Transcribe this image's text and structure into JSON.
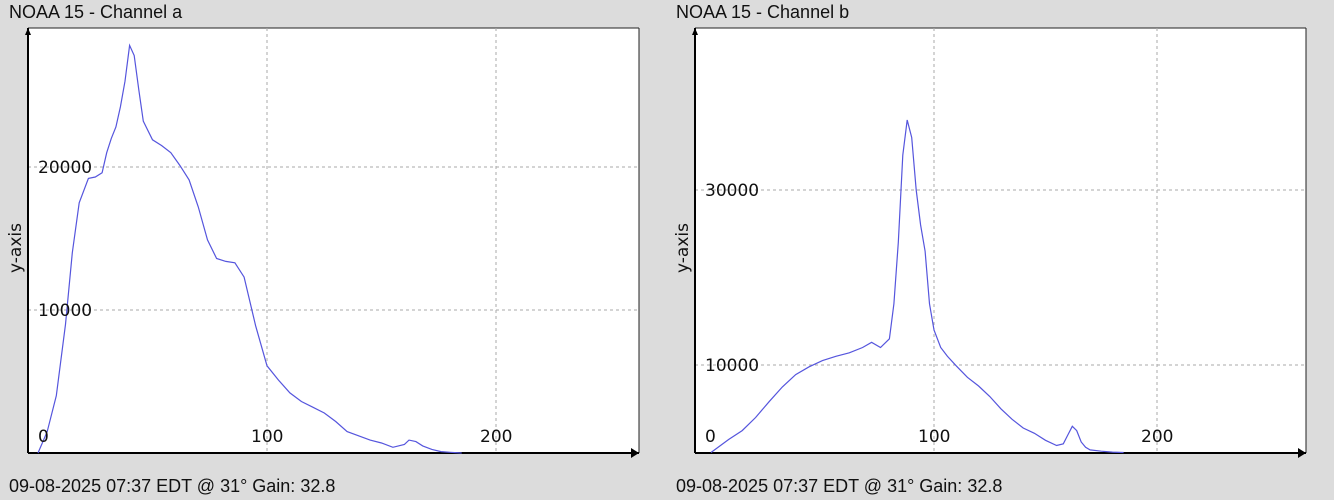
{
  "chart_data": [
    {
      "type": "line",
      "title": "NOAA 15 - Channel a",
      "footer": "09-08-2025 07:37 EDT @ 31° Gain: 32.8",
      "ylabel": "y-axis",
      "xlim": [
        0,
        260
      ],
      "ylim": [
        0,
        30000
      ],
      "grid": true,
      "x_ticks": [
        {
          "value": 0,
          "label": "0"
        },
        {
          "value": 100,
          "label": "100"
        },
        {
          "value": 200,
          "label": "200"
        }
      ],
      "y_ticks": [
        {
          "value": 10000,
          "label": "10000"
        },
        {
          "value": 20000,
          "label": "20000"
        }
      ],
      "color": "#5555dd",
      "series": [
        {
          "x": [
            0,
            4,
            8,
            12,
            15,
            18,
            22,
            25,
            28,
            30,
            32,
            34,
            36,
            38,
            40,
            42,
            44,
            46,
            50,
            54,
            58,
            62,
            66,
            70,
            74,
            78,
            82,
            86,
            90,
            95,
            100,
            105,
            110,
            115,
            120,
            125,
            130,
            135,
            140,
            145,
            150,
            155,
            160,
            162,
            165,
            168,
            172,
            176,
            180,
            185
          ],
          "y": [
            0,
            1500,
            4000,
            9000,
            14000,
            17500,
            19200,
            19300,
            19600,
            21000,
            22000,
            22800,
            24200,
            26000,
            28500,
            27800,
            25400,
            23200,
            21900,
            21500,
            21000,
            20100,
            19100,
            17200,
            14900,
            13600,
            13400,
            13300,
            12300,
            8900,
            6100,
            5100,
            4200,
            3600,
            3200,
            2800,
            2200,
            1500,
            1200,
            900,
            700,
            400,
            600,
            900,
            800,
            500,
            250,
            100,
            50,
            0
          ]
        }
      ]
    },
    {
      "type": "line",
      "title": "NOAA 15 - Channel b",
      "footer": "09-08-2025 07:37 EDT @ 31° Gain: 32.8",
      "ylabel": "y-axis",
      "xlim": [
        0,
        255
      ],
      "ylim": [
        0,
        40000
      ],
      "grid": true,
      "x_ticks": [
        {
          "value": 0,
          "label": "0"
        },
        {
          "value": 100,
          "label": "100"
        },
        {
          "value": 200,
          "label": "200"
        }
      ],
      "y_ticks": [
        {
          "value": 10000,
          "label": "10000"
        },
        {
          "value": 30000,
          "label": "30000"
        }
      ],
      "color": "#5555dd",
      "series": [
        {
          "x": [
            0,
            8,
            14,
            20,
            26,
            32,
            38,
            44,
            50,
            56,
            62,
            68,
            72,
            76,
            80,
            82,
            84,
            86,
            88,
            90,
            92,
            94,
            96,
            98,
            100,
            103,
            106,
            110,
            115,
            120,
            125,
            130,
            135,
            140,
            145,
            150,
            155,
            158,
            160,
            162,
            164,
            166,
            168,
            170,
            175,
            180,
            185
          ],
          "y": [
            0,
            1500,
            2500,
            4000,
            5800,
            7500,
            8900,
            9800,
            10500,
            11000,
            11400,
            12000,
            12600,
            12000,
            13000,
            17000,
            24000,
            34000,
            38000,
            36000,
            30000,
            26000,
            23000,
            17000,
            14000,
            12000,
            11000,
            9900,
            8600,
            7600,
            6400,
            5000,
            3800,
            2800,
            2200,
            1400,
            800,
            1000,
            2000,
            3000,
            2500,
            1200,
            600,
            300,
            150,
            50,
            0
          ]
        }
      ]
    }
  ]
}
